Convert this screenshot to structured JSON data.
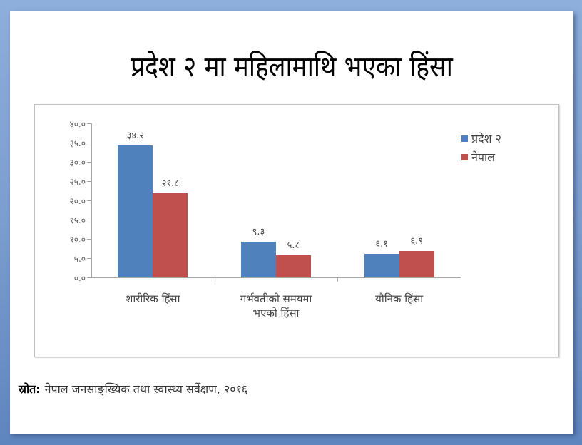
{
  "slide": {
    "title": "प्रदेश २ मा महिलामाथि भएका हिंसा",
    "source_label": "स्रोत:",
    "source_text": "नेपाल जनसाङ्ख्यिक तथा स्वास्थ्य सर्वेक्षण, २०१६"
  },
  "colors": {
    "background": "#7b9dcf",
    "series_pradesh2": "#4f81bd",
    "series_nepal": "#c0504d",
    "axis": "#a6a6a6"
  },
  "chart_data": {
    "type": "bar",
    "title": "प्रदेश २ मा महिलामाथि भएका हिंसा",
    "xlabel": "",
    "ylabel": "",
    "ylim": [
      0,
      40
    ],
    "yticks": [
      0,
      5,
      10,
      15,
      20,
      25,
      30,
      35,
      40
    ],
    "ytick_labels": [
      "०.०",
      "५.०",
      "१०.०",
      "१५.०",
      "२०.०",
      "२५.०",
      "३०.०",
      "३५.०",
      "४०.०"
    ],
    "categories": [
      "शारीरिक हिंसा",
      "गर्भवतीको समयमा भएको हिंसा",
      "यौनिक हिंसा"
    ],
    "category_lines": [
      [
        "शारीरिक हिंसा"
      ],
      [
        "गर्भवतीको समयमा",
        "भएको हिंसा"
      ],
      [
        "यौनिक हिंसा"
      ]
    ],
    "series": [
      {
        "name": "प्रदेश २",
        "color": "#4f81bd",
        "values": [
          34.2,
          9.3,
          6.1
        ],
        "labels": [
          "३४.२",
          "९.३",
          "६.१"
        ]
      },
      {
        "name": "नेपाल",
        "color": "#c0504d",
        "values": [
          21.8,
          5.8,
          6.9
        ],
        "labels": [
          "२१.८",
          "५.८",
          "६.९"
        ]
      }
    ],
    "grid": false,
    "legend_position": "right"
  }
}
